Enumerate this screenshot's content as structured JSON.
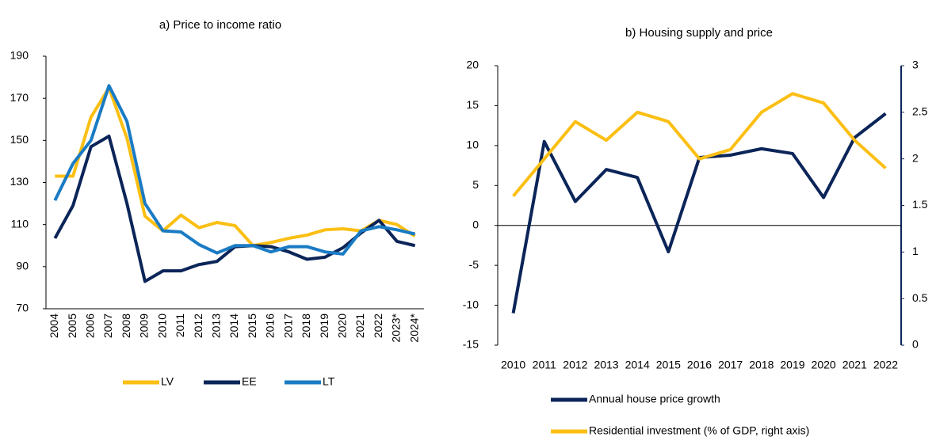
{
  "chart_data": [
    {
      "type": "line",
      "title": "a) Price to income ratio",
      "categories": [
        "2004",
        "2005",
        "2006",
        "2007",
        "2008",
        "2009",
        "2010",
        "2011",
        "2012",
        "2013",
        "2014",
        "2015",
        "2016",
        "2017",
        "2018",
        "2019",
        "2020",
        "2021",
        "2022",
        "2023*",
        "2024*"
      ],
      "ylim": [
        70,
        190
      ],
      "yticks": [
        70,
        90,
        110,
        130,
        150,
        170,
        190
      ],
      "series": [
        {
          "name": "LV",
          "color": "#fbbf14",
          "values": [
            133,
            133,
            161,
            175,
            151,
            114,
            107,
            114.5,
            108.5,
            111,
            109.5,
            100,
            101.5,
            103.5,
            105,
            107.5,
            108,
            107,
            112,
            110,
            104.5
          ]
        },
        {
          "name": "EE",
          "color": "#0b2559",
          "values": [
            103.5,
            119,
            147,
            152,
            120,
            83,
            88,
            88,
            91,
            92.5,
            99.5,
            100,
            99.5,
            97,
            93.5,
            94.5,
            99,
            106,
            112,
            102,
            100
          ]
        },
        {
          "name": "LT",
          "color": "#1a7bc4",
          "values": [
            121.5,
            139,
            150,
            176,
            159,
            120,
            107,
            106.5,
            100.5,
            96.5,
            100,
            100,
            97,
            99.5,
            99.5,
            97,
            96,
            107,
            109,
            107.5,
            105.5
          ]
        }
      ]
    },
    {
      "type": "line",
      "title": "b) Housing supply and price",
      "categories": [
        "2010",
        "2011",
        "2012",
        "2013",
        "2014",
        "2015",
        "2016",
        "2017",
        "2018",
        "2019",
        "2020",
        "2021",
        "2022"
      ],
      "ylim": [
        -15,
        20
      ],
      "yticks": [
        -15,
        -10,
        -5,
        0,
        5,
        10,
        15,
        20
      ],
      "y2lim": [
        0,
        3
      ],
      "y2ticks": [
        0,
        0.5,
        1,
        1.5,
        2,
        2.5,
        3
      ],
      "series": [
        {
          "name": "Annual house price growth",
          "color": "#0b2559",
          "values": [
            -11,
            10.5,
            3,
            7,
            6,
            -3.3,
            8.5,
            8.8,
            9.6,
            9,
            3.5,
            11,
            14
          ]
        },
        {
          "name": "Residential investment (% of GDP, right axis)",
          "color": "#fbbf14",
          "axis": "y2",
          "values": [
            1.6,
            2.0,
            2.4,
            2.2,
            2.5,
            2.4,
            2.0,
            2.1,
            2.5,
            2.7,
            2.6,
            2.2,
            1.9
          ]
        }
      ]
    }
  ]
}
